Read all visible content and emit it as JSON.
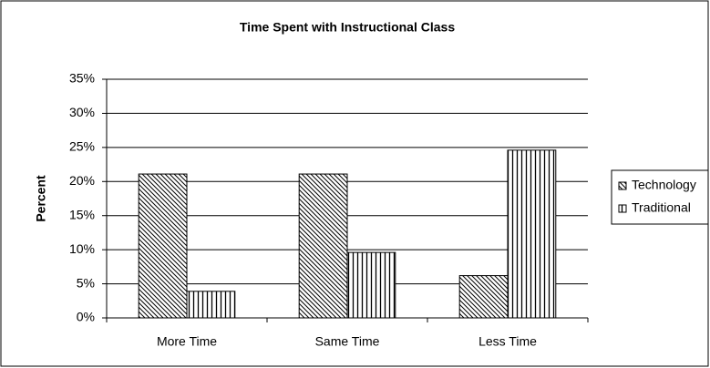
{
  "chart_data": {
    "type": "bar",
    "title": "Time Spent with Instructional Class",
    "y_label": "Percent",
    "categories": [
      "More Time",
      "Same Time",
      "Less Time"
    ],
    "series": [
      {
        "name": "Technology",
        "color": "#000000",
        "pattern": "diagonal",
        "values": [
          21.1,
          21.1,
          6.2
        ]
      },
      {
        "name": "Traditional",
        "color": "#000000",
        "pattern": "vertical",
        "values": [
          3.9,
          9.6,
          24.6
        ]
      }
    ],
    "ylim": [
      0,
      35
    ],
    "yticks": [
      {
        "value": 0,
        "label": "0%"
      },
      {
        "value": 5,
        "label": "5%"
      },
      {
        "value": 10,
        "label": "10%"
      },
      {
        "value": 15,
        "label": "15%"
      },
      {
        "value": 20,
        "label": "20%"
      },
      {
        "value": 25,
        "label": "25%"
      },
      {
        "value": 30,
        "label": "30%"
      },
      {
        "value": 35,
        "label": "35%"
      }
    ],
    "grid": true,
    "legend": "right"
  }
}
